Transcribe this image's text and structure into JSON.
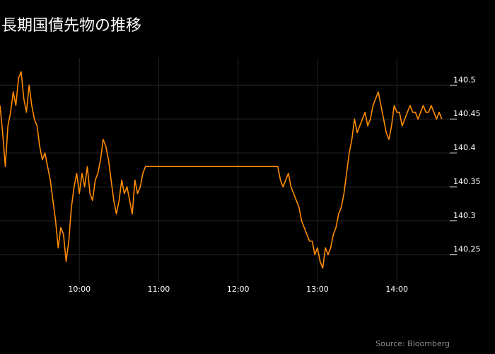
{
  "title": "長期国債先物の推移",
  "source": "Source: Bloomberg",
  "colors": {
    "background": "#000000",
    "line": "#ff8c00",
    "grid": "#222222",
    "text": "#ffffff",
    "source": "#8a8a8a"
  },
  "chart_data": {
    "type": "line",
    "title": "長期国債先物の推移",
    "xlabel": "",
    "ylabel": "",
    "xlim": [
      "09:00",
      "14:40"
    ],
    "ylim": [
      140.21,
      140.54
    ],
    "x_ticks": [
      "10:00",
      "11:00",
      "12:00",
      "13:00",
      "14:00"
    ],
    "y_ticks": [
      140.25,
      140.3,
      140.35,
      140.4,
      140.45,
      140.5
    ],
    "y_tick_labels": [
      "140.25",
      "140.3",
      "140.35",
      "140.4",
      "140.45",
      "140.5"
    ],
    "y_axis_side": "right",
    "grid": true,
    "legend": "none",
    "series": [
      {
        "color": "#ff8c00",
        "x": [
          "09:00",
          "09:02",
          "09:04",
          "09:06",
          "09:08",
          "09:10",
          "09:12",
          "09:14",
          "09:16",
          "09:18",
          "09:20",
          "09:22",
          "09:24",
          "09:26",
          "09:28",
          "09:30",
          "09:32",
          "09:34",
          "09:36",
          "09:38",
          "09:40",
          "09:42",
          "09:44",
          "09:46",
          "09:48",
          "09:50",
          "09:52",
          "09:54",
          "09:56",
          "09:58",
          "10:00",
          "10:02",
          "10:04",
          "10:06",
          "10:08",
          "10:10",
          "10:12",
          "10:14",
          "10:16",
          "10:18",
          "10:20",
          "10:22",
          "10:24",
          "10:26",
          "10:28",
          "10:30",
          "10:32",
          "10:34",
          "10:36",
          "10:38",
          "10:40",
          "10:42",
          "10:44",
          "10:46",
          "10:48",
          "10:50",
          "10:52",
          "10:54",
          "10:56",
          "10:58",
          "11:00",
          "11:02",
          "12:30",
          "12:32",
          "12:34",
          "12:36",
          "12:38",
          "12:40",
          "12:42",
          "12:44",
          "12:46",
          "12:48",
          "12:50",
          "12:52",
          "12:54",
          "12:56",
          "12:58",
          "13:00",
          "13:02",
          "13:04",
          "13:06",
          "13:08",
          "13:10",
          "13:12",
          "13:14",
          "13:16",
          "13:18",
          "13:20",
          "13:22",
          "13:24",
          "13:26",
          "13:28",
          "13:30",
          "13:32",
          "13:34",
          "13:36",
          "13:38",
          "13:40",
          "13:42",
          "13:44",
          "13:46",
          "13:48",
          "13:50",
          "13:52",
          "13:54",
          "13:56",
          "13:58",
          "14:00",
          "14:02",
          "14:04",
          "14:06",
          "14:08",
          "14:10",
          "14:12",
          "14:14",
          "14:16",
          "14:18",
          "14:20",
          "14:22",
          "14:24",
          "14:26",
          "14:28",
          "14:30",
          "14:32",
          "14:34"
        ],
        "y": [
          140.47,
          140.43,
          140.38,
          140.44,
          140.46,
          140.49,
          140.47,
          140.51,
          140.52,
          140.48,
          140.46,
          140.5,
          140.47,
          140.45,
          140.44,
          140.41,
          140.39,
          140.4,
          140.38,
          140.36,
          140.33,
          140.3,
          140.26,
          140.29,
          140.28,
          140.24,
          140.27,
          140.32,
          140.35,
          140.37,
          140.34,
          140.37,
          140.35,
          140.38,
          140.34,
          140.33,
          140.36,
          140.37,
          140.39,
          140.42,
          140.41,
          140.39,
          140.36,
          140.33,
          140.31,
          140.33,
          140.36,
          140.34,
          140.35,
          140.33,
          140.31,
          140.36,
          140.34,
          140.35,
          140.37,
          140.38,
          140.38,
          140.38,
          140.38,
          140.38,
          140.38,
          140.38,
          140.38,
          140.36,
          140.35,
          140.36,
          140.37,
          140.35,
          140.34,
          140.33,
          140.32,
          140.3,
          140.29,
          140.28,
          140.27,
          140.27,
          140.25,
          140.26,
          140.24,
          140.23,
          140.26,
          140.25,
          140.26,
          140.28,
          140.29,
          140.31,
          140.32,
          140.34,
          140.37,
          140.4,
          140.42,
          140.45,
          140.43,
          140.44,
          140.45,
          140.46,
          140.44,
          140.45,
          140.47,
          140.48,
          140.49,
          140.47,
          140.45,
          140.43,
          140.42,
          140.44,
          140.47,
          140.46,
          140.46,
          140.44,
          140.45,
          140.46,
          140.47,
          140.46,
          140.46,
          140.45,
          140.46,
          140.47,
          140.46,
          140.46,
          140.47,
          140.46,
          140.45,
          140.46,
          140.45
        ]
      }
    ]
  }
}
